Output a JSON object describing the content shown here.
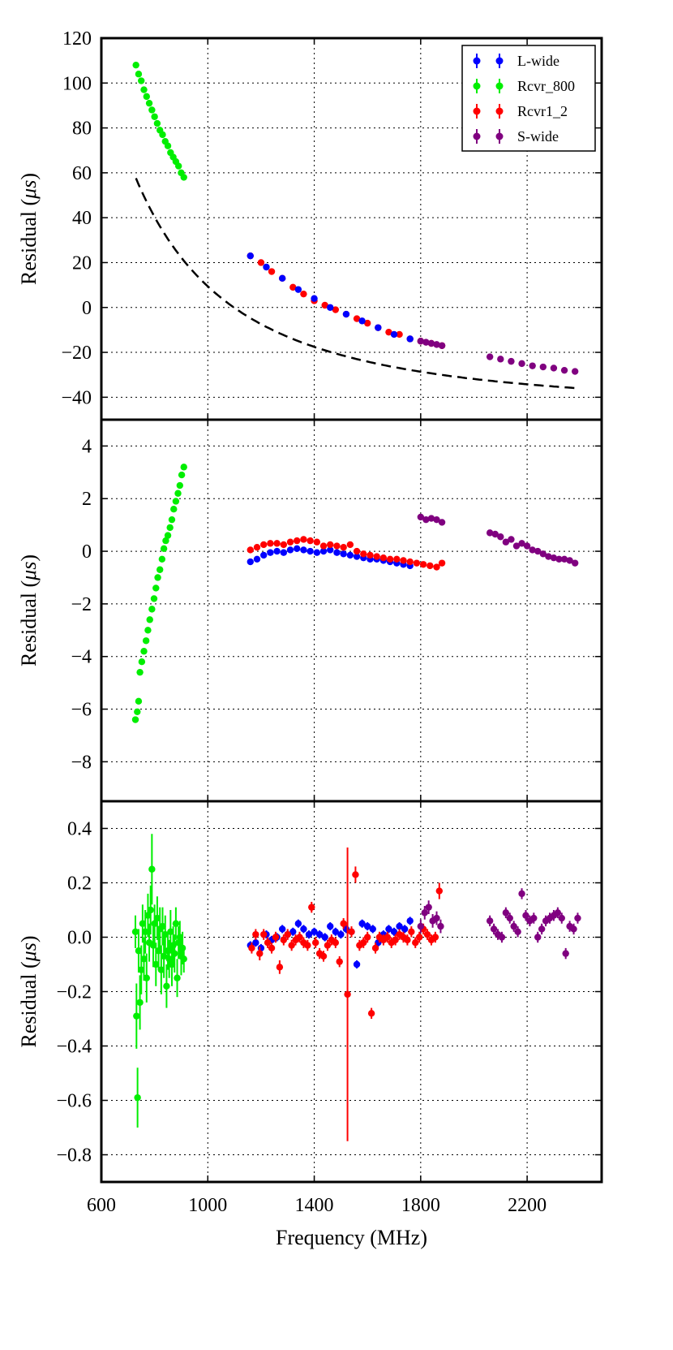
{
  "chart_data": [
    {
      "type": "scatter",
      "title": "",
      "xlabel": "Frequency (MHz)",
      "ylabel": "Residual (μs)",
      "ylabel_parts": {
        "pre": "Residual (",
        "mu": "μ",
        "unit": "s",
        "post": ")"
      },
      "xlim": [
        600,
        2480
      ],
      "ylim": [
        -50,
        120
      ],
      "xticks": [
        600,
        1000,
        1400,
        1800,
        2200
      ],
      "yticks": [
        -40,
        -20,
        0,
        20,
        40,
        60,
        80,
        100,
        120
      ],
      "ytick_labels": [
        "−40",
        "−20",
        "0",
        "20",
        "40",
        "60",
        "80",
        "100",
        "120"
      ],
      "grid": true,
      "legend": {
        "position": "top-right",
        "entries": [
          {
            "label": "L-wide",
            "color": "#0000ff"
          },
          {
            "label": "Rcvr_800",
            "color": "#00ee00"
          },
          {
            "label": "Rcvr1_2",
            "color": "#ff0000"
          },
          {
            "label": "S-wide",
            "color": "#800080"
          }
        ]
      },
      "model_curve": {
        "style": "dashed",
        "color": "#000000",
        "x_range": [
          730,
          2390
        ],
        "formula": "y = 5.5e7 / x^2 - 45.6"
      },
      "series": [
        {
          "name": "Rcvr_800",
          "color": "#00ee00",
          "x": [
            730,
            740,
            750,
            760,
            770,
            780,
            790,
            800,
            810,
            820,
            830,
            840,
            850,
            860,
            870,
            880,
            890,
            900,
            910
          ],
          "y": [
            108,
            104,
            101,
            97,
            94,
            91,
            88,
            85,
            82,
            79,
            77,
            74,
            72,
            69,
            67,
            65,
            63,
            60,
            58
          ]
        },
        {
          "name": "Rcvr1_2",
          "color": "#ff0000",
          "x": [
            1160,
            1200,
            1240,
            1280,
            1320,
            1360,
            1400,
            1440,
            1480,
            1520,
            1560,
            1600,
            1640,
            1680,
            1720,
            1760,
            1800,
            1840,
            1880
          ],
          "y": [
            23,
            20,
            16,
            13,
            9,
            6,
            3,
            1,
            -1,
            -3,
            -5,
            -7,
            -9,
            -11,
            -12,
            -14,
            -15,
            -16,
            -17
          ]
        },
        {
          "name": "L-wide",
          "color": "#0000ff",
          "x": [
            1160,
            1220,
            1280,
            1340,
            1400,
            1460,
            1520,
            1580,
            1640,
            1700,
            1760
          ],
          "y": [
            23,
            18,
            13,
            8,
            4,
            0,
            -3,
            -6,
            -9,
            -12,
            -14
          ]
        },
        {
          "name": "S-wide",
          "color": "#800080",
          "x": [
            1800,
            1820,
            1840,
            1860,
            1880,
            2060,
            2100,
            2140,
            2180,
            2220,
            2260,
            2300,
            2340,
            2380
          ],
          "y": [
            -15,
            -15.5,
            -16,
            -16.5,
            -17,
            -22,
            -23,
            -24,
            -25,
            -26,
            -26.5,
            -27,
            -28,
            -28.5
          ]
        }
      ]
    },
    {
      "type": "scatter",
      "title": "",
      "xlabel": "",
      "ylabel": "Residual (μs)",
      "ylabel_parts": {
        "pre": "Residual (",
        "mu": "μ",
        "unit": "s",
        "post": ")"
      },
      "xlim": [
        600,
        2480
      ],
      "ylim": [
        -9.5,
        5
      ],
      "xticks": [
        600,
        1000,
        1400,
        1800,
        2200
      ],
      "yticks": [
        -8,
        -6,
        -4,
        -2,
        0,
        2,
        4
      ],
      "ytick_labels": [
        "−8",
        "−6",
        "−4",
        "−2",
        "0",
        "2",
        "4"
      ],
      "grid": true,
      "series": [
        {
          "name": "Rcvr_800",
          "color": "#00ee00",
          "x": [
            728,
            735,
            740,
            745,
            752,
            760,
            768,
            775,
            782,
            790,
            798,
            805,
            812,
            820,
            828,
            835,
            842,
            850,
            858,
            865,
            872,
            880,
            888,
            895,
            902,
            910
          ],
          "y": [
            -6.4,
            -6.1,
            -5.7,
            -4.6,
            -4.2,
            -3.8,
            -3.4,
            -3.0,
            -2.6,
            -2.2,
            -1.8,
            -1.4,
            -1.0,
            -0.7,
            -0.3,
            0.1,
            0.4,
            0.6,
            0.9,
            1.2,
            1.6,
            1.9,
            2.2,
            2.5,
            2.9,
            3.2
          ]
        },
        {
          "name": "L-wide",
          "color": "#0000ff",
          "x": [
            1160,
            1185,
            1210,
            1235,
            1260,
            1285,
            1310,
            1335,
            1360,
            1385,
            1410,
            1435,
            1460,
            1485,
            1510,
            1535,
            1560,
            1585,
            1610,
            1635,
            1660,
            1685,
            1710,
            1735,
            1760
          ],
          "y": [
            -0.4,
            -0.3,
            -0.15,
            -0.05,
            0,
            -0.05,
            0.05,
            0.1,
            0.05,
            0,
            -0.05,
            0,
            0.05,
            -0.05,
            -0.1,
            -0.15,
            -0.2,
            -0.25,
            -0.3,
            -0.3,
            -0.35,
            -0.4,
            -0.45,
            -0.5,
            -0.55
          ]
        },
        {
          "name": "Rcvr1_2",
          "color": "#ff0000",
          "x": [
            1160,
            1185,
            1210,
            1235,
            1260,
            1285,
            1310,
            1335,
            1360,
            1385,
            1410,
            1435,
            1460,
            1485,
            1510,
            1535,
            1560,
            1585,
            1610,
            1635,
            1660,
            1685,
            1710,
            1735,
            1760,
            1785,
            1810,
            1835,
            1860,
            1880
          ],
          "y": [
            0.05,
            0.15,
            0.25,
            0.3,
            0.3,
            0.25,
            0.35,
            0.4,
            0.45,
            0.4,
            0.35,
            0.2,
            0.25,
            0.2,
            0.15,
            0.25,
            0,
            -0.1,
            -0.15,
            -0.2,
            -0.25,
            -0.3,
            -0.3,
            -0.35,
            -0.4,
            -0.45,
            -0.5,
            -0.55,
            -0.6,
            -0.45
          ]
        },
        {
          "name": "S-wide",
          "color": "#800080",
          "x": [
            1800,
            1820,
            1840,
            1860,
            1880,
            2060,
            2080,
            2100,
            2120,
            2140,
            2160,
            2180,
            2200,
            2220,
            2240,
            2260,
            2280,
            2300,
            2320,
            2340,
            2360,
            2380
          ],
          "y": [
            1.3,
            1.2,
            1.25,
            1.2,
            1.1,
            0.7,
            0.65,
            0.55,
            0.35,
            0.45,
            0.2,
            0.3,
            0.2,
            0.05,
            0,
            -0.1,
            -0.2,
            -0.25,
            -0.3,
            -0.3,
            -0.35,
            -0.45
          ]
        }
      ]
    },
    {
      "type": "scatter",
      "title": "",
      "xlabel": "Frequency (MHz)",
      "ylabel": "Residual (μs)",
      "ylabel_parts": {
        "pre": "Residual (",
        "mu": "μ",
        "unit": "s",
        "post": ")"
      },
      "xlim": [
        600,
        2480
      ],
      "ylim": [
        -0.9,
        0.5
      ],
      "xticks": [
        600,
        1000,
        1400,
        1800,
        2200
      ],
      "xtick_labels": [
        "600",
        "1000",
        "1400",
        "1800",
        "2200"
      ],
      "yticks": [
        -0.8,
        -0.6,
        -0.4,
        -0.2,
        0.0,
        0.2,
        0.4
      ],
      "ytick_labels": [
        "−0.8",
        "−0.6",
        "−0.4",
        "−0.2",
        "0.0",
        "0.2",
        "0.4"
      ],
      "grid": true,
      "series": [
        {
          "name": "Rcvr_800",
          "color": "#00ee00",
          "x": [
            728,
            732,
            736,
            740,
            745,
            750,
            755,
            760,
            765,
            770,
            775,
            780,
            785,
            790,
            795,
            800,
            805,
            810,
            815,
            820,
            825,
            830,
            835,
            840,
            845,
            850,
            855,
            860,
            865,
            870,
            875,
            880,
            885,
            890,
            895,
            900,
            905,
            910
          ],
          "y": [
            0.02,
            -0.29,
            -0.59,
            -0.05,
            -0.24,
            -0.12,
            0.05,
            -0.08,
            0.02,
            -0.15,
            0.08,
            -0.02,
            0.1,
            0.25,
            -0.03,
            0.05,
            -0.1,
            0.07,
            -0.05,
            0.03,
            -0.12,
            0.04,
            -0.07,
            0.01,
            -0.18,
            -0.05,
            -0.08,
            0.02,
            -0.1,
            -0.03,
            -0.06,
            0.05,
            -0.15,
            -0.02,
            0,
            -0.07,
            -0.04,
            -0.08
          ],
          "yerr": [
            0.06,
            0.12,
            0.11,
            0.08,
            0.1,
            0.09,
            0.07,
            0.08,
            0.08,
            0.09,
            0.08,
            0.07,
            0.09,
            0.13,
            0.08,
            0.07,
            0.08,
            0.08,
            0.07,
            0.08,
            0.09,
            0.07,
            0.08,
            0.07,
            0.08,
            0.07,
            0.07,
            0.08,
            0.08,
            0.07,
            0.07,
            0.06,
            0.07,
            0.06,
            0.06,
            0.07,
            0.06,
            0.05
          ]
        },
        {
          "name": "L-wide",
          "color": "#0000ff",
          "x": [
            1160,
            1180,
            1200,
            1220,
            1240,
            1260,
            1280,
            1300,
            1320,
            1340,
            1360,
            1380,
            1400,
            1420,
            1440,
            1460,
            1480,
            1500,
            1520,
            1540,
            1560,
            1580,
            1600,
            1620,
            1640,
            1660,
            1680,
            1700,
            1720,
            1740,
            1760
          ],
          "y": [
            -0.03,
            -0.02,
            -0.04,
            0.01,
            -0.01,
            0,
            0.03,
            0.01,
            0.02,
            0.05,
            0.03,
            0.01,
            0.02,
            0.01,
            0,
            0.04,
            0.02,
            0.01,
            0.03,
            0.02,
            -0.1,
            0.05,
            0.04,
            0.03,
            -0.02,
            0.01,
            0.03,
            0.02,
            0.04,
            0.03,
            0.06
          ],
          "yerr": [
            0.015,
            0.015,
            0.015,
            0.015,
            0.015,
            0.015,
            0.015,
            0.015,
            0.015,
            0.015,
            0.015,
            0.015,
            0.015,
            0.015,
            0.015,
            0.015,
            0.015,
            0.015,
            0.015,
            0.015,
            0.015,
            0.015,
            0.015,
            0.015,
            0.015,
            0.015,
            0.015,
            0.015,
            0.015,
            0.015,
            0.015
          ]
        },
        {
          "name": "Rcvr1_2",
          "color": "#ff0000",
          "x": [
            1165,
            1180,
            1195,
            1210,
            1225,
            1240,
            1255,
            1270,
            1285,
            1300,
            1315,
            1330,
            1345,
            1360,
            1375,
            1390,
            1405,
            1420,
            1435,
            1450,
            1465,
            1480,
            1495,
            1510,
            1525,
            1540,
            1555,
            1570,
            1585,
            1600,
            1615,
            1630,
            1645,
            1660,
            1675,
            1690,
            1705,
            1720,
            1735,
            1750,
            1765,
            1780,
            1795,
            1810,
            1825,
            1840,
            1855,
            1870
          ],
          "y": [
            -0.04,
            0.01,
            -0.06,
            0.01,
            -0.02,
            -0.04,
            0,
            -0.11,
            -0.01,
            0.01,
            -0.03,
            -0.01,
            0,
            -0.02,
            -0.03,
            0.11,
            -0.02,
            -0.06,
            -0.07,
            -0.03,
            -0.01,
            -0.02,
            -0.09,
            0.05,
            -0.21,
            0.02,
            0.23,
            -0.03,
            -0.02,
            0,
            -0.28,
            -0.04,
            0,
            -0.01,
            0,
            -0.02,
            -0.01,
            0.01,
            0,
            -0.01,
            0.02,
            -0.02,
            0,
            0.03,
            0.01,
            -0.01,
            0,
            0.17
          ],
          "yerr": [
            0.02,
            0.02,
            0.025,
            0.02,
            0.02,
            0.02,
            0.02,
            0.025,
            0.02,
            0.02,
            0.02,
            0.02,
            0.02,
            0.02,
            0.02,
            0.02,
            0.02,
            0.02,
            0.02,
            0.02,
            0.02,
            0.02,
            0.02,
            0.02,
            0.54,
            0.02,
            0.03,
            0.02,
            0.02,
            0.02,
            0.02,
            0.02,
            0.02,
            0.02,
            0.02,
            0.02,
            0.02,
            0.02,
            0.02,
            0.02,
            0.02,
            0.02,
            0.02,
            0.02,
            0.02,
            0.02,
            0.02,
            0.03
          ]
        },
        {
          "name": "S-wide",
          "color": "#800080",
          "x": [
            1800,
            1815,
            1830,
            1845,
            1860,
            1875,
            2060,
            2075,
            2090,
            2105,
            2120,
            2135,
            2150,
            2165,
            2180,
            2195,
            2210,
            2225,
            2240,
            2255,
            2270,
            2285,
            2300,
            2315,
            2330,
            2345,
            2360,
            2375,
            2390
          ],
          "y": [
            0.04,
            0.09,
            0.11,
            0.06,
            0.07,
            0.04,
            0.06,
            0.03,
            0.01,
            0,
            0.09,
            0.07,
            0.04,
            0.02,
            0.16,
            0.08,
            0.06,
            0.07,
            0,
            0.03,
            0.06,
            0.07,
            0.08,
            0.09,
            0.07,
            -0.06,
            0.04,
            0.03,
            0.07
          ],
          "yerr": [
            0.025,
            0.025,
            0.025,
            0.025,
            0.025,
            0.025,
            0.02,
            0.02,
            0.02,
            0.02,
            0.02,
            0.02,
            0.02,
            0.02,
            0.02,
            0.02,
            0.02,
            0.02,
            0.02,
            0.02,
            0.02,
            0.02,
            0.02,
            0.02,
            0.02,
            0.02,
            0.02,
            0.02,
            0.02
          ]
        }
      ]
    }
  ]
}
